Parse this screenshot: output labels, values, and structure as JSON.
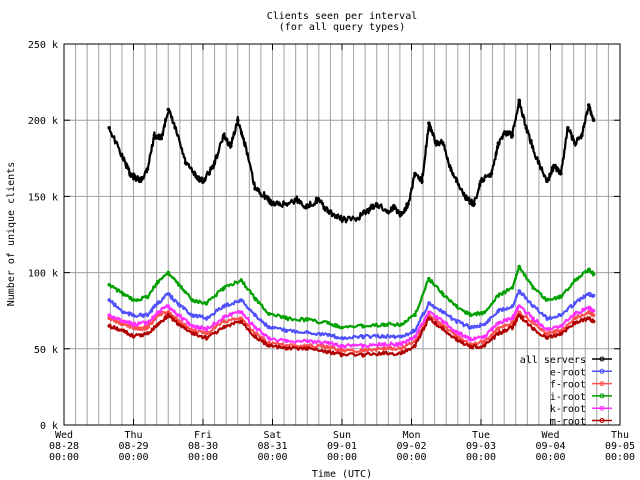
{
  "chart_data": {
    "type": "line",
    "title": "Clients seen per interval",
    "subtitle": "(for all query types)",
    "xlabel": "Time (UTC)",
    "ylabel": "Number of unique clients",
    "grid": true,
    "legend_position": "bottom-right",
    "x_ticks": [
      {
        "day": "Wed",
        "date": "08-28",
        "time": "00:00"
      },
      {
        "day": "Thu",
        "date": "08-29",
        "time": "00:00"
      },
      {
        "day": "Fri",
        "date": "08-30",
        "time": "00:00"
      },
      {
        "day": "Sat",
        "date": "08-31",
        "time": "00:00"
      },
      {
        "day": "Sun",
        "date": "09-01",
        "time": "00:00"
      },
      {
        "day": "Mon",
        "date": "09-02",
        "time": "00:00"
      },
      {
        "day": "Tue",
        "date": "09-03",
        "time": "00:00"
      },
      {
        "day": "Wed",
        "date": "09-04",
        "time": "00:00"
      },
      {
        "day": "Thu",
        "date": "09-05",
        "time": "00:00"
      }
    ],
    "y_ticks": [
      "0 k",
      "50 k",
      "100 k",
      "150 k",
      "200 k",
      "250 k"
    ],
    "ylim": [
      0,
      250000
    ],
    "x_range_days": [
      0,
      8
    ],
    "x_unit": "days since Wed 08-28 00:00",
    "series": [
      {
        "name": "all servers",
        "color": "#000000",
        "points": [
          [
            0.65,
            195000
          ],
          [
            0.85,
            175000
          ],
          [
            0.95,
            165000
          ],
          [
            1.0,
            163000
          ],
          [
            1.1,
            160000
          ],
          [
            1.2,
            168000
          ],
          [
            1.3,
            190000
          ],
          [
            1.4,
            188000
          ],
          [
            1.5,
            207000
          ],
          [
            1.6,
            195000
          ],
          [
            1.75,
            172000
          ],
          [
            1.9,
            163000
          ],
          [
            2.0,
            160000
          ],
          [
            2.15,
            170000
          ],
          [
            2.3,
            190000
          ],
          [
            2.4,
            183000
          ],
          [
            2.5,
            200000
          ],
          [
            2.6,
            185000
          ],
          [
            2.75,
            155000
          ],
          [
            2.9,
            150000
          ],
          [
            3.0,
            145000
          ],
          [
            3.2,
            145000
          ],
          [
            3.35,
            148000
          ],
          [
            3.5,
            143000
          ],
          [
            3.65,
            148000
          ],
          [
            3.8,
            140000
          ],
          [
            4.0,
            135000
          ],
          [
            4.2,
            135000
          ],
          [
            4.35,
            140000
          ],
          [
            4.5,
            145000
          ],
          [
            4.65,
            140000
          ],
          [
            4.75,
            143000
          ],
          [
            4.85,
            138000
          ],
          [
            4.95,
            145000
          ],
          [
            5.05,
            165000
          ],
          [
            5.15,
            160000
          ],
          [
            5.25,
            198000
          ],
          [
            5.35,
            185000
          ],
          [
            5.45,
            185000
          ],
          [
            5.55,
            170000
          ],
          [
            5.65,
            160000
          ],
          [
            5.8,
            148000
          ],
          [
            5.9,
            145000
          ],
          [
            6.0,
            160000
          ],
          [
            6.15,
            165000
          ],
          [
            6.25,
            185000
          ],
          [
            6.35,
            192000
          ],
          [
            6.45,
            190000
          ],
          [
            6.55,
            213000
          ],
          [
            6.65,
            195000
          ],
          [
            6.8,
            175000
          ],
          [
            6.95,
            160000
          ],
          [
            7.05,
            170000
          ],
          [
            7.15,
            165000
          ],
          [
            7.25,
            195000
          ],
          [
            7.35,
            185000
          ],
          [
            7.45,
            190000
          ],
          [
            7.55,
            210000
          ],
          [
            7.62,
            200000
          ]
        ]
      },
      {
        "name": "e-root",
        "color": "#5050ff",
        "points": [
          [
            0.65,
            82000
          ],
          [
            0.85,
            74000
          ],
          [
            1.0,
            72000
          ],
          [
            1.2,
            72000
          ],
          [
            1.35,
            80000
          ],
          [
            1.5,
            86000
          ],
          [
            1.65,
            79000
          ],
          [
            1.85,
            72000
          ],
          [
            2.05,
            70000
          ],
          [
            2.3,
            78000
          ],
          [
            2.55,
            82000
          ],
          [
            2.75,
            72000
          ],
          [
            2.95,
            64000
          ],
          [
            3.2,
            62000
          ],
          [
            3.5,
            61000
          ],
          [
            3.8,
            59000
          ],
          [
            4.0,
            57000
          ],
          [
            4.3,
            58000
          ],
          [
            4.6,
            58000
          ],
          [
            4.85,
            58000
          ],
          [
            5.05,
            62000
          ],
          [
            5.25,
            80000
          ],
          [
            5.45,
            74000
          ],
          [
            5.65,
            68000
          ],
          [
            5.85,
            64000
          ],
          [
            6.05,
            66000
          ],
          [
            6.25,
            75000
          ],
          [
            6.45,
            78000
          ],
          [
            6.55,
            88000
          ],
          [
            6.75,
            78000
          ],
          [
            6.95,
            70000
          ],
          [
            7.15,
            72000
          ],
          [
            7.35,
            80000
          ],
          [
            7.55,
            86000
          ],
          [
            7.62,
            85000
          ]
        ]
      },
      {
        "name": "f-root",
        "color": "#ff5050",
        "points": [
          [
            0.65,
            70000
          ],
          [
            0.85,
            66000
          ],
          [
            1.0,
            64000
          ],
          [
            1.1,
            63000
          ],
          [
            1.2,
            64000
          ],
          [
            1.35,
            72000
          ],
          [
            1.5,
            74000
          ],
          [
            1.65,
            68000
          ],
          [
            1.85,
            62000
          ],
          [
            2.05,
            60000
          ],
          [
            2.3,
            68000
          ],
          [
            2.55,
            70000
          ],
          [
            2.75,
            60000
          ],
          [
            2.95,
            54000
          ],
          [
            3.2,
            52000
          ],
          [
            3.5,
            52000
          ],
          [
            3.8,
            51000
          ],
          [
            4.0,
            49000
          ],
          [
            4.3,
            49000
          ],
          [
            4.6,
            50000
          ],
          [
            4.85,
            50000
          ],
          [
            5.05,
            55000
          ],
          [
            5.25,
            72000
          ],
          [
            5.45,
            65000
          ],
          [
            5.65,
            58000
          ],
          [
            5.85,
            53000
          ],
          [
            6.05,
            55000
          ],
          [
            6.25,
            63000
          ],
          [
            6.45,
            67000
          ],
          [
            6.55,
            74000
          ],
          [
            6.75,
            67000
          ],
          [
            6.95,
            60000
          ],
          [
            7.15,
            62000
          ],
          [
            7.35,
            70000
          ],
          [
            7.55,
            74000
          ],
          [
            7.62,
            72000
          ]
        ]
      },
      {
        "name": "i-root",
        "color": "#00a000",
        "points": [
          [
            0.65,
            92000
          ],
          [
            0.85,
            86000
          ],
          [
            1.0,
            82000
          ],
          [
            1.2,
            84000
          ],
          [
            1.35,
            94000
          ],
          [
            1.5,
            100000
          ],
          [
            1.65,
            92000
          ],
          [
            1.85,
            82000
          ],
          [
            2.05,
            80000
          ],
          [
            2.3,
            90000
          ],
          [
            2.55,
            95000
          ],
          [
            2.75,
            83000
          ],
          [
            2.95,
            73000
          ],
          [
            3.2,
            70000
          ],
          [
            3.5,
            69000
          ],
          [
            3.8,
            67000
          ],
          [
            4.0,
            64000
          ],
          [
            4.3,
            65000
          ],
          [
            4.6,
            66000
          ],
          [
            4.85,
            66000
          ],
          [
            5.05,
            72000
          ],
          [
            5.25,
            96000
          ],
          [
            5.45,
            86000
          ],
          [
            5.65,
            78000
          ],
          [
            5.85,
            72000
          ],
          [
            6.05,
            74000
          ],
          [
            6.25,
            85000
          ],
          [
            6.45,
            90000
          ],
          [
            6.55,
            104000
          ],
          [
            6.75,
            90000
          ],
          [
            6.95,
            82000
          ],
          [
            7.15,
            84000
          ],
          [
            7.35,
            95000
          ],
          [
            7.55,
            102000
          ],
          [
            7.62,
            99000
          ]
        ]
      },
      {
        "name": "k-root",
        "color": "#ff30ff",
        "points": [
          [
            0.65,
            72000
          ],
          [
            0.85,
            68000
          ],
          [
            1.0,
            66000
          ],
          [
            1.2,
            67000
          ],
          [
            1.35,
            74000
          ],
          [
            1.5,
            78000
          ],
          [
            1.65,
            72000
          ],
          [
            1.85,
            65000
          ],
          [
            2.05,
            63000
          ],
          [
            2.3,
            71000
          ],
          [
            2.55,
            74000
          ],
          [
            2.75,
            64000
          ],
          [
            2.95,
            57000
          ],
          [
            3.2,
            55000
          ],
          [
            3.5,
            55000
          ],
          [
            3.8,
            54000
          ],
          [
            4.0,
            52000
          ],
          [
            4.3,
            52000
          ],
          [
            4.6,
            53000
          ],
          [
            4.85,
            53000
          ],
          [
            5.05,
            58000
          ],
          [
            5.25,
            74000
          ],
          [
            5.45,
            68000
          ],
          [
            5.65,
            61000
          ],
          [
            5.85,
            56000
          ],
          [
            6.05,
            58000
          ],
          [
            6.25,
            67000
          ],
          [
            6.45,
            70000
          ],
          [
            6.55,
            78000
          ],
          [
            6.75,
            70000
          ],
          [
            6.95,
            63000
          ],
          [
            7.15,
            65000
          ],
          [
            7.35,
            73000
          ],
          [
            7.55,
            77000
          ],
          [
            7.62,
            75000
          ]
        ]
      },
      {
        "name": "m-root",
        "color": "#b00000",
        "points": [
          [
            0.65,
            65000
          ],
          [
            0.85,
            62000
          ],
          [
            1.0,
            58000
          ],
          [
            1.2,
            60000
          ],
          [
            1.35,
            66000
          ],
          [
            1.5,
            72000
          ],
          [
            1.65,
            66000
          ],
          [
            1.85,
            60000
          ],
          [
            2.05,
            57000
          ],
          [
            2.3,
            64000
          ],
          [
            2.55,
            68000
          ],
          [
            2.75,
            58000
          ],
          [
            2.95,
            52000
          ],
          [
            3.2,
            50000
          ],
          [
            3.5,
            50000
          ],
          [
            3.8,
            48000
          ],
          [
            4.0,
            46000
          ],
          [
            4.3,
            46000
          ],
          [
            4.6,
            47000
          ],
          [
            4.85,
            47000
          ],
          [
            5.05,
            52000
          ],
          [
            5.25,
            70000
          ],
          [
            5.45,
            63000
          ],
          [
            5.65,
            56000
          ],
          [
            5.85,
            51000
          ],
          [
            6.05,
            52000
          ],
          [
            6.25,
            60000
          ],
          [
            6.45,
            64000
          ],
          [
            6.55,
            72000
          ],
          [
            6.75,
            63000
          ],
          [
            6.95,
            57000
          ],
          [
            7.15,
            60000
          ],
          [
            7.35,
            67000
          ],
          [
            7.55,
            70000
          ],
          [
            7.62,
            68000
          ]
        ]
      }
    ]
  }
}
